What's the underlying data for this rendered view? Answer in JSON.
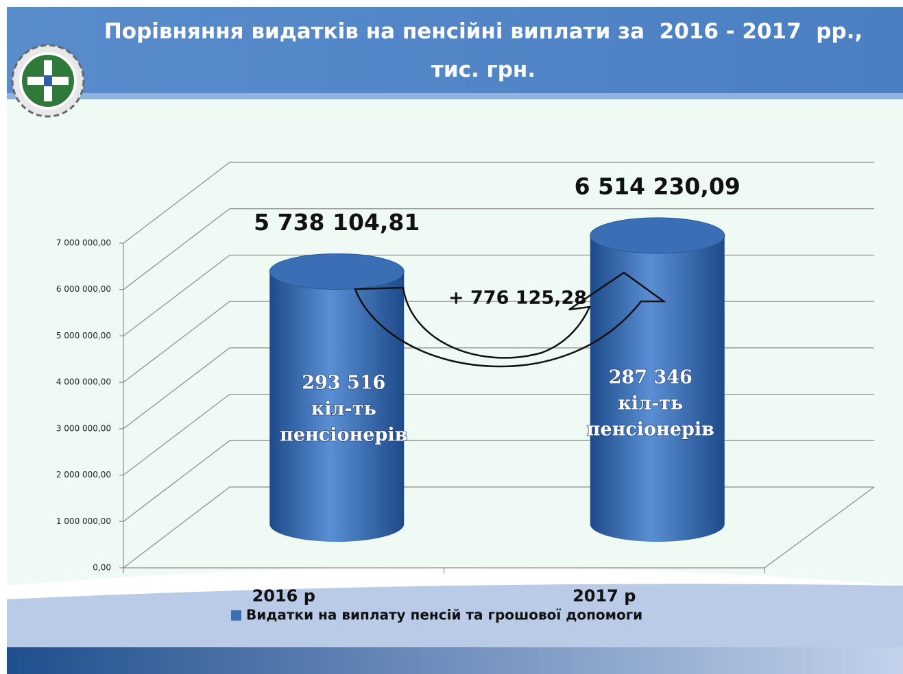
{
  "chart_data": {
    "type": "bar",
    "title": "Порівняння видатків на пенсійні виплати за  2016 - 2017  рр., тис. грн.",
    "categories": [
      "2016 р",
      "2017 р"
    ],
    "series": [
      {
        "name": "Видатки на виплату пенсій та грошової допомоги",
        "color": "#3a6fb5",
        "values": [
          5738104.81,
          6514230.09
        ],
        "value_labels": [
          "5 738 104,81",
          "6 514 230,09"
        ]
      }
    ],
    "ylim": [
      0,
      7000000
    ],
    "yticks": [
      {
        "value": 0,
        "label": "0,00"
      },
      {
        "value": 1000000,
        "label": "1 000 000,00"
      },
      {
        "value": 2000000,
        "label": "2 000 000,00"
      },
      {
        "value": 3000000,
        "label": "3 000 000,00"
      },
      {
        "value": 4000000,
        "label": "4 000 000,00"
      },
      {
        "value": 5000000,
        "label": "5 000 000,00"
      },
      {
        "value": 6000000,
        "label": "6 000 000,00"
      },
      {
        "value": 7000000,
        "label": "7 000 000,00"
      }
    ],
    "grid": true,
    "annotations": [
      "+ 776 125,28"
    ],
    "bar_notes": [
      [
        "293 516",
        "кіл-ть",
        "пенсіонерів"
      ],
      [
        "287 346",
        "кіл-ть",
        "пенсіонерів"
      ]
    ]
  }
}
